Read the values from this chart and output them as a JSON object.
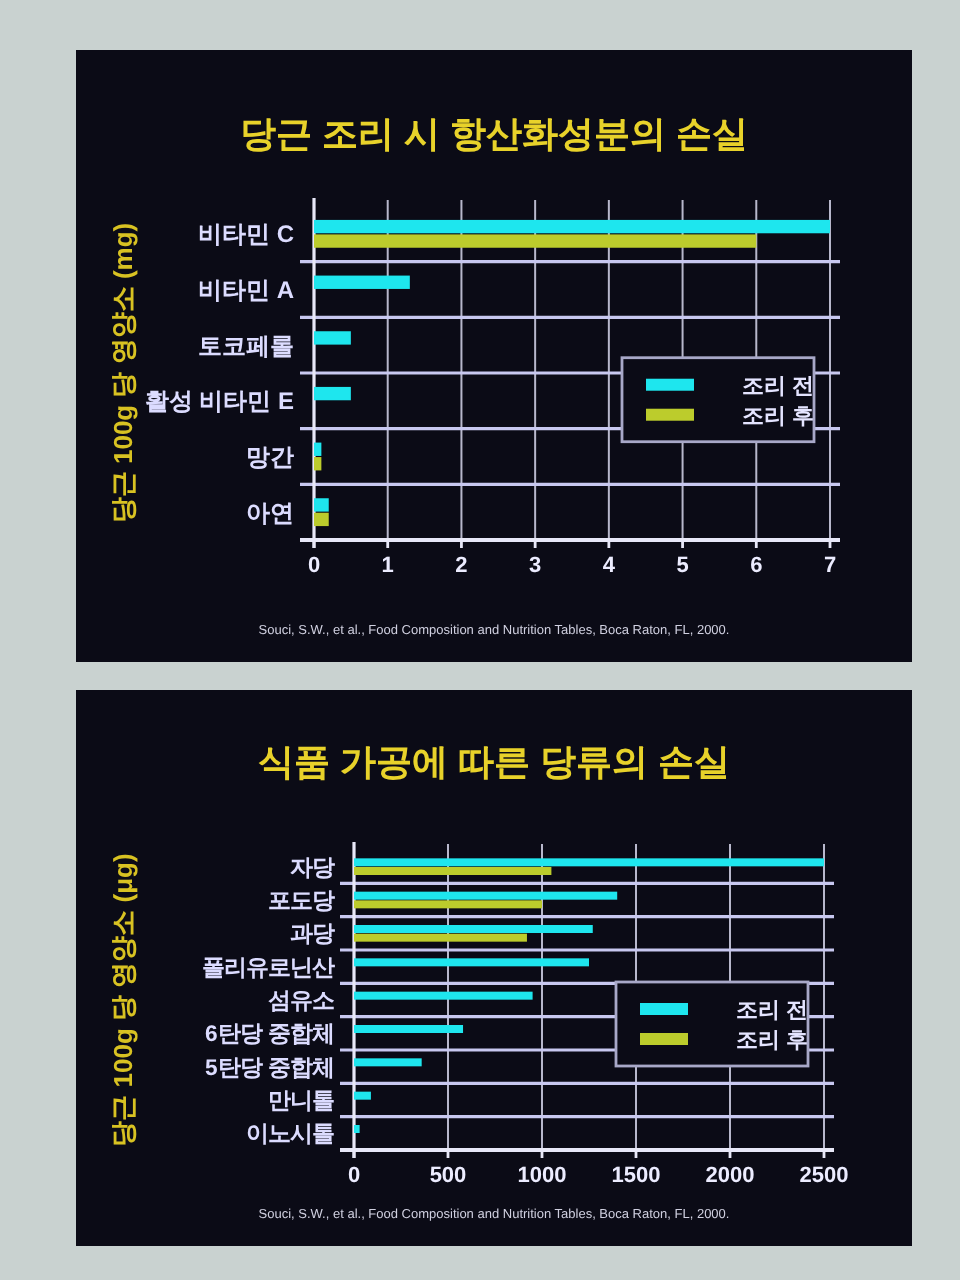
{
  "chart_data": [
    {
      "type": "bar",
      "orientation": "horizontal",
      "title": "당근 조리 시 항산화성분의 손실",
      "ylabel": "당근 100g 당 영양소 (mg)",
      "categories": [
        "비타민 C",
        "비타민 A",
        "토코페롤",
        "활성 비타민 E",
        "망간",
        "아연"
      ],
      "series": [
        {
          "name": "조리 전",
          "color": "#1ee6ee",
          "values": [
            7.0,
            1.3,
            0.5,
            0.5,
            0.1,
            0.2
          ]
        },
        {
          "name": "조리 후",
          "color": "#bccc2c",
          "values": [
            6.0,
            null,
            null,
            null,
            0.1,
            0.2
          ]
        }
      ],
      "xlim": [
        0,
        7
      ],
      "xticks": [
        0,
        1,
        2,
        3,
        4,
        5,
        6,
        7
      ],
      "grid": true,
      "legend": "right",
      "annotations": [
        "Souci, S.W., et al., Food Composition and Nutrition Tables, Boca Raton, FL, 2000."
      ]
    },
    {
      "type": "bar",
      "orientation": "horizontal",
      "title": "식품 가공에 따른 당류의 손실",
      "ylabel": "당근 100g 당 영양소 (μg)",
      "categories": [
        "자당",
        "포도당",
        "과당",
        "폴리유로닌산",
        "섬유소",
        "6탄당 중합체",
        "5탄당 중합체",
        "만니톨",
        "이노시톨"
      ],
      "series": [
        {
          "name": "조리 전",
          "color": "#1ee6ee",
          "values": [
            2500,
            1400,
            1270,
            1250,
            950,
            580,
            360,
            90,
            30
          ]
        },
        {
          "name": "조리 후",
          "color": "#bccc2c",
          "values": [
            1050,
            1000,
            920,
            null,
            null,
            null,
            null,
            null,
            null
          ]
        }
      ],
      "xlim": [
        0,
        2500
      ],
      "xticks": [
        0,
        500,
        1000,
        1500,
        2000,
        2500
      ],
      "grid": true,
      "legend": "right",
      "annotations": [
        "Souci, S.W., et al., Food Composition and Nutrition Tables, Boca Raton, FL, 2000."
      ]
    }
  ]
}
